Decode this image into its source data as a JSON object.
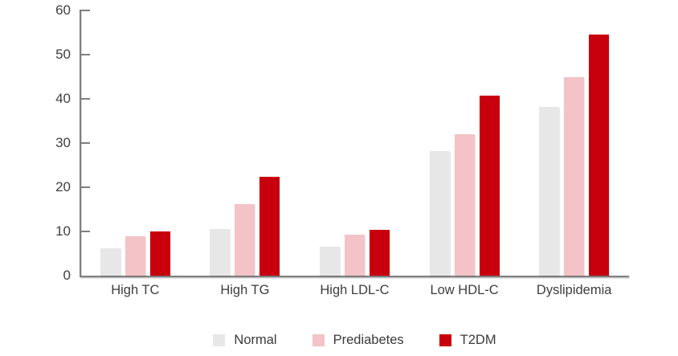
{
  "chart_data": {
    "type": "bar",
    "categories": [
      "High TC",
      "High TG",
      "High LDL-C",
      "Low HDL-C",
      "Dyslipidemia"
    ],
    "series": [
      {
        "name": "Normal",
        "color": "#e7e7e7",
        "values": [
          6.1,
          10.5,
          6.6,
          28.2,
          38.2
        ]
      },
      {
        "name": "Prediabetes",
        "color": "#f3c3c7",
        "values": [
          9.0,
          16.1,
          9.2,
          32.0,
          45.0
        ]
      },
      {
        "name": "T2DM",
        "color": "#c8000e",
        "values": [
          10.0,
          22.4,
          10.3,
          40.7,
          54.6
        ]
      }
    ],
    "ylim": [
      0,
      60
    ],
    "yticks": [
      0,
      10,
      20,
      30,
      40,
      50,
      60
    ],
    "grid": false,
    "legend_position": "bottom",
    "axis_color": "#7f7f7f",
    "tick_label_color": "#404040",
    "category_label_color": "#3d3d3d"
  }
}
